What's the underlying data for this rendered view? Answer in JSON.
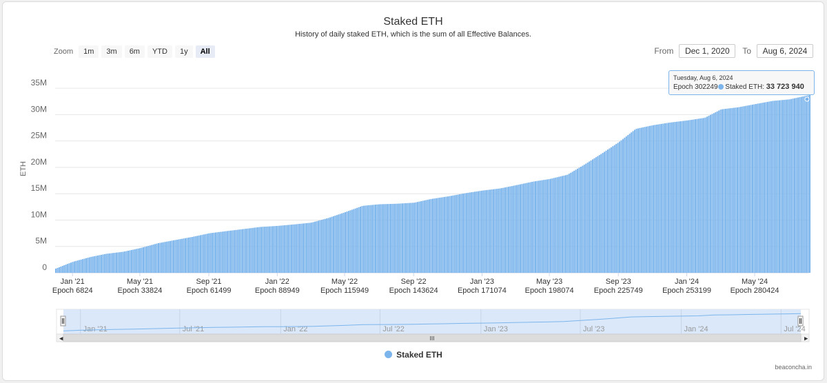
{
  "chart_data": {
    "type": "bar",
    "title": "Staked ETH",
    "subtitle": "History of daily staked ETH, which is the sum of all Effective Balances.",
    "ylabel": "ETH",
    "xlabel": "",
    "ylim": [
      0,
      35000000
    ],
    "y_ticks": [
      "0",
      "5M",
      "10M",
      "15M",
      "20M",
      "25M",
      "30M",
      "35M"
    ],
    "x_ticks": [
      {
        "date": "Jan '21",
        "epoch": "Epoch 6824"
      },
      {
        "date": "May '21",
        "epoch": "Epoch 33824"
      },
      {
        "date": "Sep '21",
        "epoch": "Epoch 61499"
      },
      {
        "date": "Jan '22",
        "epoch": "Epoch 88949"
      },
      {
        "date": "May '22",
        "epoch": "Epoch 115949"
      },
      {
        "date": "Sep '22",
        "epoch": "Epoch 143624"
      },
      {
        "date": "Jan '23",
        "epoch": "Epoch 171074"
      },
      {
        "date": "May '23",
        "epoch": "Epoch 198074"
      },
      {
        "date": "Sep '23",
        "epoch": "Epoch 225749"
      },
      {
        "date": "Jan '24",
        "epoch": "Epoch 253199"
      },
      {
        "date": "May '24",
        "epoch": "Epoch 280424"
      }
    ],
    "series": [
      {
        "name": "Staked ETH",
        "color": "#7cb5ec",
        "points": [
          [
            "2020-12-01",
            800000
          ],
          [
            "2021-01-01",
            2100000
          ],
          [
            "2021-02-01",
            3000000
          ],
          [
            "2021-03-01",
            3600000
          ],
          [
            "2021-04-01",
            4000000
          ],
          [
            "2021-05-01",
            4700000
          ],
          [
            "2021-06-01",
            5600000
          ],
          [
            "2021-07-01",
            6200000
          ],
          [
            "2021-08-01",
            6800000
          ],
          [
            "2021-09-01",
            7500000
          ],
          [
            "2021-10-01",
            7900000
          ],
          [
            "2021-11-01",
            8300000
          ],
          [
            "2021-12-01",
            8700000
          ],
          [
            "2022-01-01",
            8900000
          ],
          [
            "2022-02-01",
            9200000
          ],
          [
            "2022-03-01",
            9500000
          ],
          [
            "2022-04-01",
            10400000
          ],
          [
            "2022-05-01",
            11500000
          ],
          [
            "2022-06-01",
            12700000
          ],
          [
            "2022-07-01",
            13000000
          ],
          [
            "2022-08-01",
            13100000
          ],
          [
            "2022-09-01",
            13300000
          ],
          [
            "2022-10-01",
            14000000
          ],
          [
            "2022-11-01",
            14500000
          ],
          [
            "2022-12-01",
            15100000
          ],
          [
            "2023-01-01",
            15600000
          ],
          [
            "2023-02-01",
            16000000
          ],
          [
            "2023-03-01",
            16600000
          ],
          [
            "2023-04-01",
            17300000
          ],
          [
            "2023-05-01",
            17800000
          ],
          [
            "2023-06-01",
            18600000
          ],
          [
            "2023-07-01",
            20500000
          ],
          [
            "2023-08-01",
            22600000
          ],
          [
            "2023-09-01",
            24800000
          ],
          [
            "2023-10-01",
            27300000
          ],
          [
            "2023-11-01",
            28000000
          ],
          [
            "2023-12-01",
            28500000
          ],
          [
            "2024-01-01",
            28900000
          ],
          [
            "2024-02-01",
            29400000
          ],
          [
            "2024-03-01",
            31000000
          ],
          [
            "2024-04-01",
            31400000
          ],
          [
            "2024-05-01",
            32000000
          ],
          [
            "2024-06-01",
            32600000
          ],
          [
            "2024-07-01",
            32900000
          ],
          [
            "2024-08-06",
            33723940
          ]
        ]
      }
    ],
    "legend": "bottom-center",
    "grid": true
  },
  "zoom": {
    "label": "Zoom",
    "buttons": [
      "1m",
      "3m",
      "6m",
      "YTD",
      "1y",
      "All"
    ],
    "active": "All"
  },
  "range": {
    "from_label": "From",
    "from_value": "Dec 1, 2020",
    "to_label": "To",
    "to_value": "Aug 6, 2024"
  },
  "tooltip": {
    "date": "Tuesday, Aug 6, 2024",
    "epoch": "Epoch 302249",
    "series": "Staked ETH: ",
    "value": "33 723 940"
  },
  "navigator": {
    "labels": [
      "Jan '21",
      "Jul '21",
      "Jan '22",
      "Jul '22",
      "Jan '23",
      "Jul '23",
      "Jan '24",
      "Jul '24"
    ],
    "scroll_grip": "III"
  },
  "legend_label": "Staked ETH",
  "credits": "beaconcha.in",
  "colors": {
    "series": "#7cb5ec",
    "navigator_fill": "#d6e6fa"
  }
}
